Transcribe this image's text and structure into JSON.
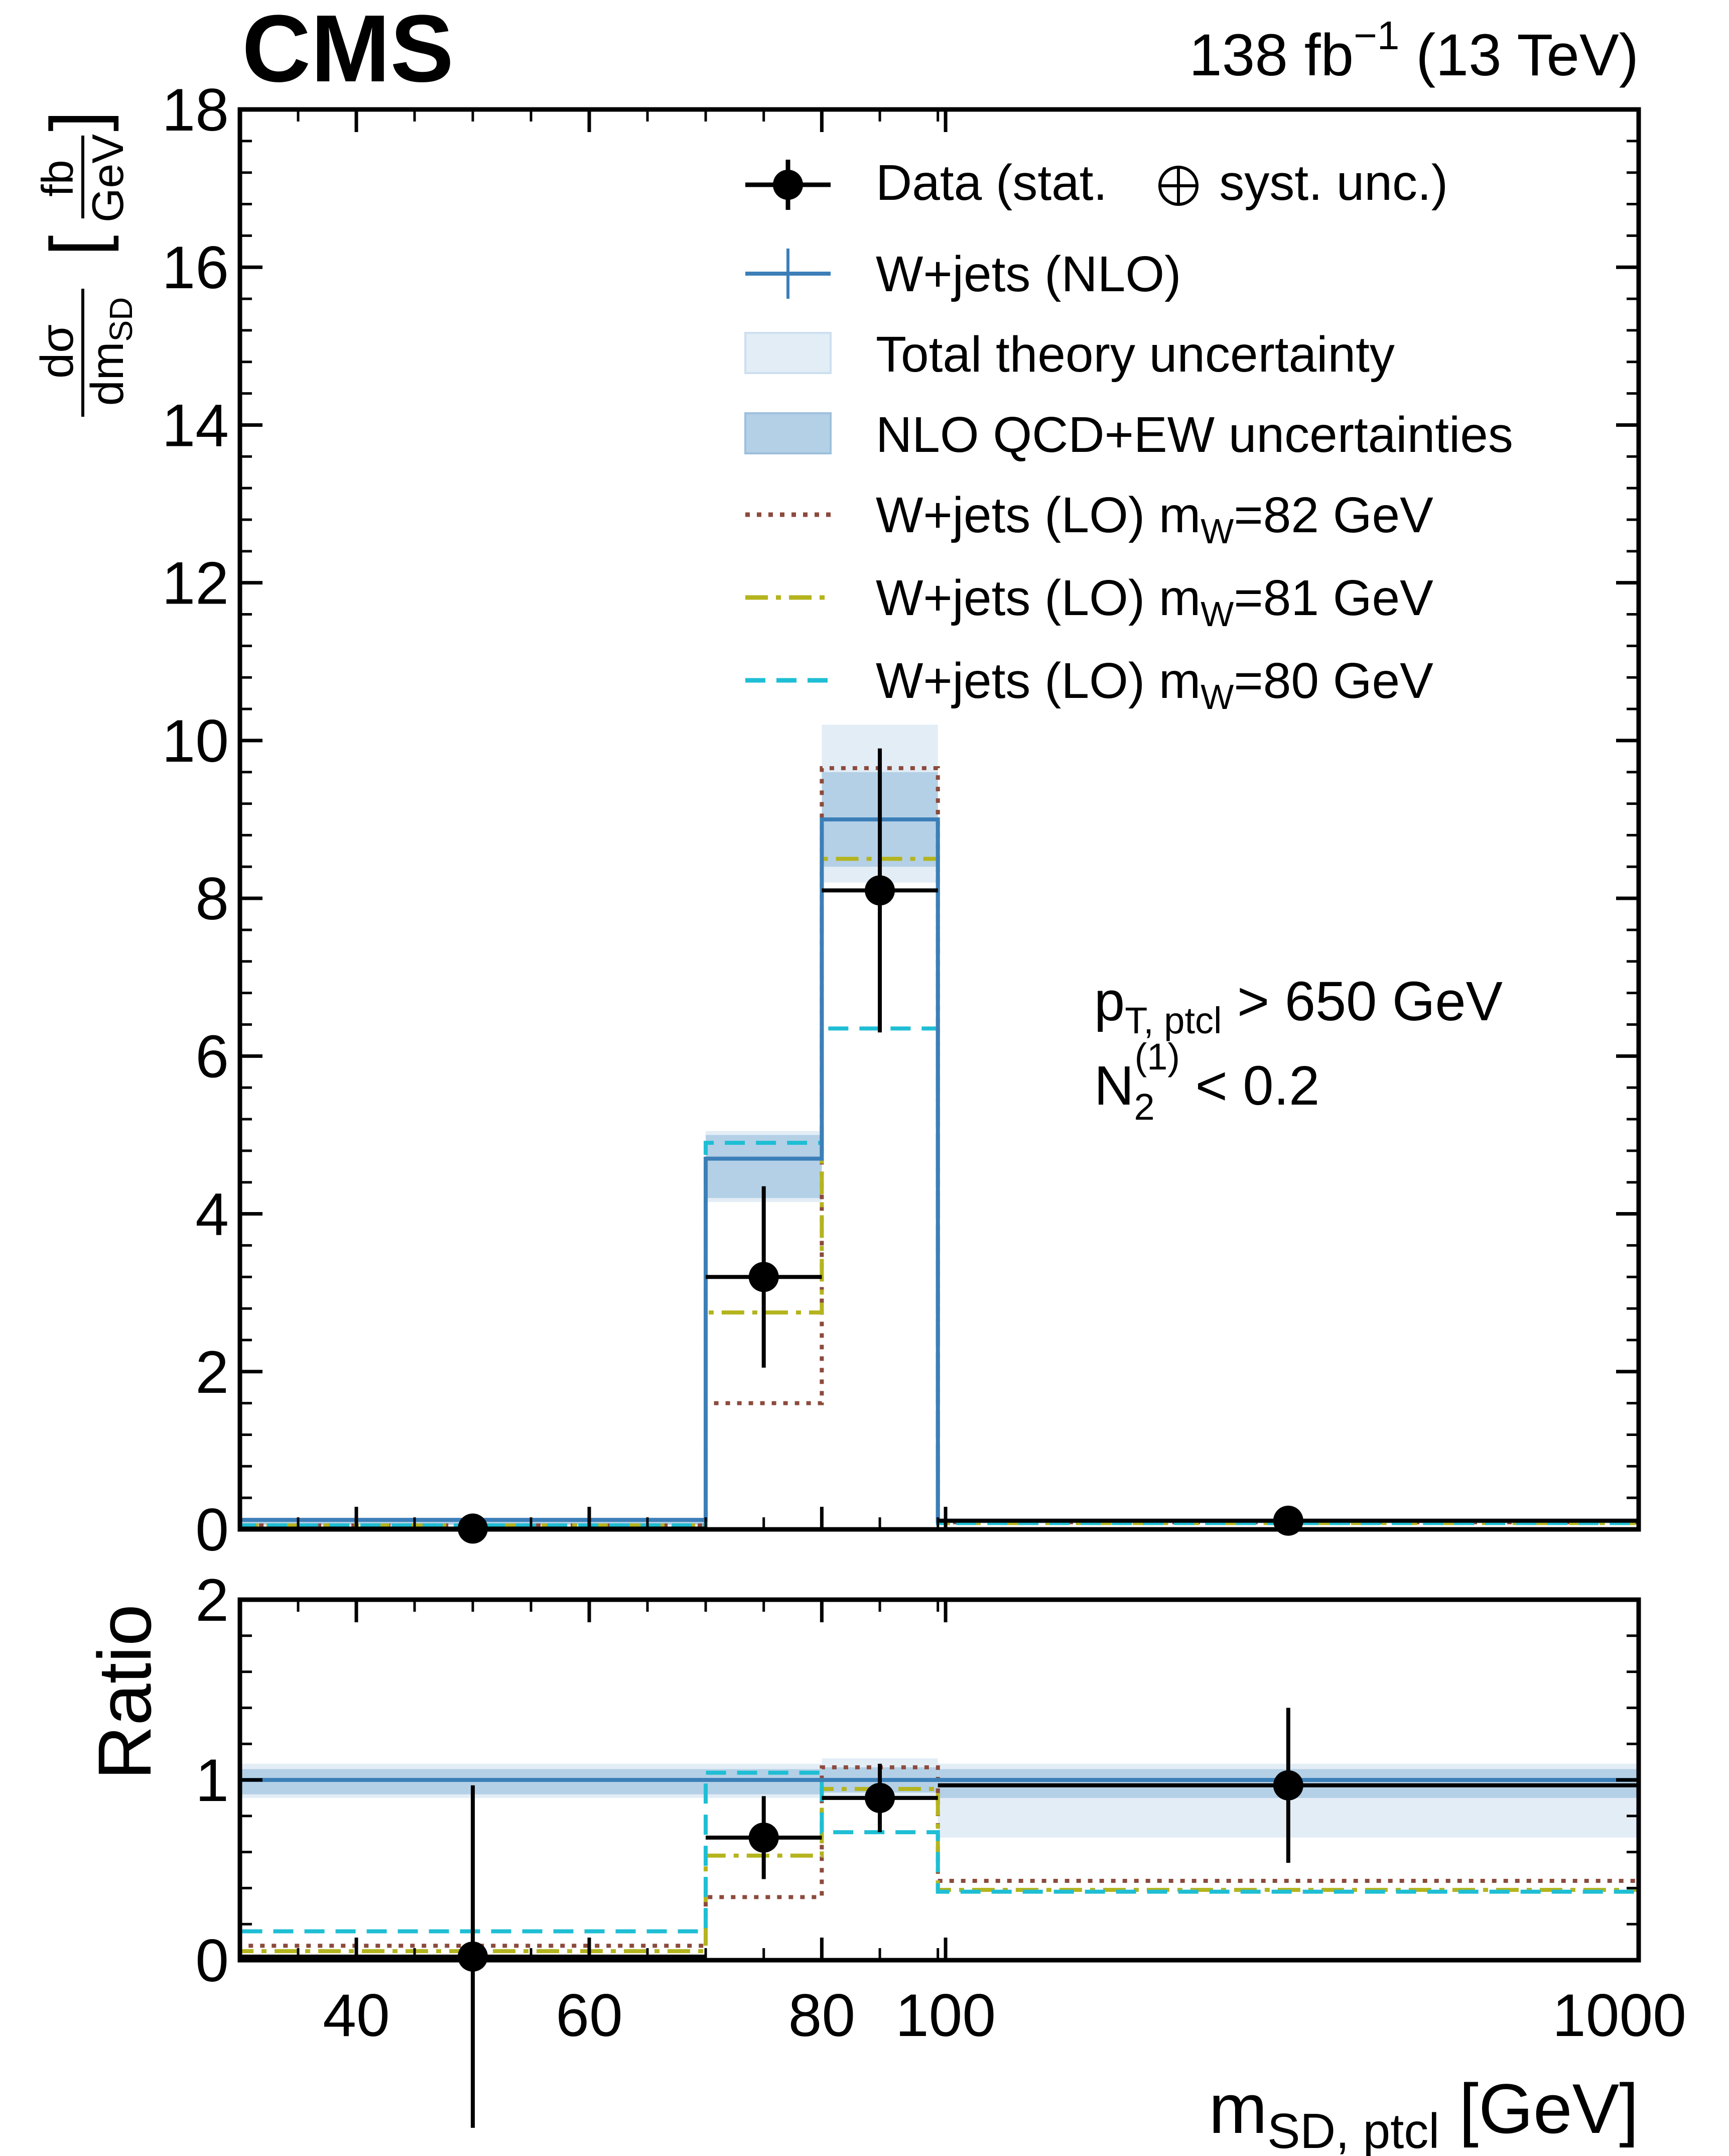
{
  "header": {
    "experiment": "CMS",
    "lumi_prefix": "138 fb",
    "lumi_exp": "−1",
    "lumi_suffix": " (13 TeV)"
  },
  "colors": {
    "data": "#000000",
    "nlo": "#3c7fb8",
    "band_total": "#e3edf6",
    "band_nlo": "#b4d0e6",
    "lo82": "#8c4a3c",
    "lo81": "#b4b41e",
    "lo80": "#1ebed4"
  },
  "legend": {
    "data": {
      "pre": "Data (stat. ",
      "post": " syst. unc.)"
    },
    "nlo": "W+jets (NLO)",
    "total_unc": "Total theory uncertainty",
    "nlo_unc": "NLO QCD+EW uncertainties",
    "lo82": {
      "pre": "W+jets (LO) m",
      "sub": "W",
      "post": "=82 GeV"
    },
    "lo81": {
      "pre": "W+jets (LO) m",
      "sub": "W",
      "post": "=81 GeV"
    },
    "lo80": {
      "pre": "W+jets (LO) m",
      "sub": "W",
      "post": "=80 GeV"
    }
  },
  "annotation": {
    "line1": {
      "main": "p",
      "sub": "T, ptcl",
      "post": " > 650 GeV"
    },
    "line2": {
      "main": "N",
      "sub": "2",
      "sup": "(1)",
      "post": " < 0.2"
    }
  },
  "chart_data": {
    "type": "histogram",
    "x_bins": [
      30,
      70,
      80,
      90,
      1000
    ],
    "x_ticks": [
      40,
      60,
      80,
      100,
      1000
    ],
    "x_tick_labels": [
      "40",
      "60",
      "80",
      "100",
      "1000"
    ],
    "xlabel": {
      "main": "m",
      "sub": "SD, ptcl",
      "post": " [GeV]"
    },
    "top_panel": {
      "ylabel": {
        "num": "dσ",
        "den_main": "dm",
        "den_sub": "SD",
        "unit_num": "fb",
        "unit_den": "GeV"
      },
      "ylim": [
        0,
        18
      ],
      "y_ticks": [
        0,
        2,
        4,
        6,
        8,
        10,
        12,
        14,
        16,
        18
      ],
      "data": {
        "x": [
          50,
          75,
          85,
          545
        ],
        "y": [
          0.01,
          3.2,
          8.1,
          0.11
        ],
        "yerr": [
          0.1,
          1.15,
          1.8,
          0.05
        ]
      },
      "nlo": [
        0.12,
        4.7,
        9.0,
        0.11
      ],
      "nlo_unc_lo": [
        0.06,
        4.2,
        8.4,
        0.08
      ],
      "nlo_unc_hi": [
        0.14,
        5.0,
        9.6,
        0.13
      ],
      "total_unc_lo": [
        0.05,
        4.15,
        8.2,
        0.07
      ],
      "total_unc_hi": [
        0.15,
        5.05,
        10.2,
        0.14
      ],
      "lo82": [
        0.05,
        1.6,
        9.65,
        0.09
      ],
      "lo81": [
        0.05,
        2.75,
        8.5,
        0.08
      ],
      "lo80": [
        0.05,
        4.9,
        6.35,
        0.08
      ]
    },
    "ratio_panel": {
      "ylabel": "Ratio",
      "ylim": [
        0,
        2
      ],
      "y_ticks": [
        0,
        1,
        2
      ],
      "data": {
        "x": [
          50,
          75,
          85,
          545
        ],
        "y": [
          0.02,
          0.68,
          0.9,
          0.97
        ],
        "yerr": [
          0.95,
          0.23,
          0.19,
          0.43
        ]
      },
      "nlo": [
        1.0,
        1.0,
        1.0,
        1.0
      ],
      "nlo_unc_lo": [
        0.92,
        0.92,
        0.93,
        0.9
      ],
      "nlo_unc_hi": [
        1.06,
        1.06,
        1.07,
        1.06
      ],
      "total_unc_lo": [
        0.9,
        0.9,
        0.91,
        0.68
      ],
      "total_unc_hi": [
        1.09,
        1.09,
        1.12,
        1.09
      ],
      "lo82": [
        0.08,
        0.35,
        1.07,
        0.44
      ],
      "lo81": [
        0.05,
        0.58,
        0.95,
        0.39
      ],
      "lo80": [
        0.16,
        1.04,
        0.71,
        0.38
      ]
    }
  }
}
